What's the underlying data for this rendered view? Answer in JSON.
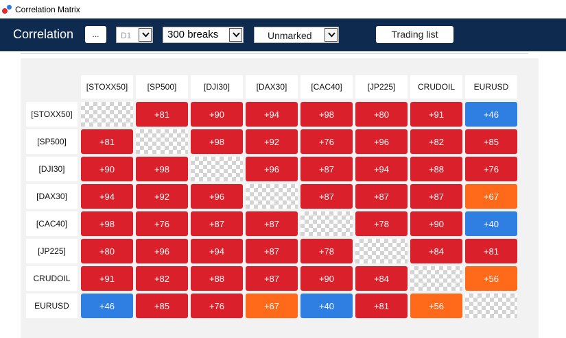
{
  "window": {
    "title": "Correlation Matrix"
  },
  "toolbar": {
    "title": "Correlation",
    "more_label": "...",
    "timeframe": "D1",
    "breaks": "300 breaks",
    "marking": "Unmarked",
    "trading_list_label": "Trading list"
  },
  "symbols": [
    "[STOXX50]",
    "[SP500]",
    "[DJI30]",
    "[DAX30]",
    "[CAC40]",
    "[JP225]",
    "CRUDOIL",
    "EURUSD"
  ],
  "matrix": [
    [
      null,
      "+81",
      "+90",
      "+94",
      "+98",
      "+80",
      "+91",
      "+46"
    ],
    [
      "+81",
      null,
      "+98",
      "+92",
      "+76",
      "+96",
      "+82",
      "+85"
    ],
    [
      "+90",
      "+98",
      null,
      "+96",
      "+87",
      "+94",
      "+88",
      "+76"
    ],
    [
      "+94",
      "+92",
      "+96",
      null,
      "+87",
      "+87",
      "+87",
      "+67"
    ],
    [
      "+98",
      "+76",
      "+87",
      "+87",
      null,
      "+78",
      "+90",
      "+40"
    ],
    [
      "+80",
      "+96",
      "+94",
      "+87",
      "+78",
      null,
      "+84",
      "+81"
    ],
    [
      "+91",
      "+82",
      "+88",
      "+87",
      "+90",
      "+84",
      null,
      "+56"
    ],
    [
      "+46",
      "+85",
      "+76",
      "+67",
      "+40",
      "+81",
      "+56",
      null
    ]
  ],
  "colors": {
    "strong": "#d9202b",
    "medium": "#ff6a1a",
    "weak": "#2f7fe3",
    "toolbar": "#0e2a4e"
  }
}
